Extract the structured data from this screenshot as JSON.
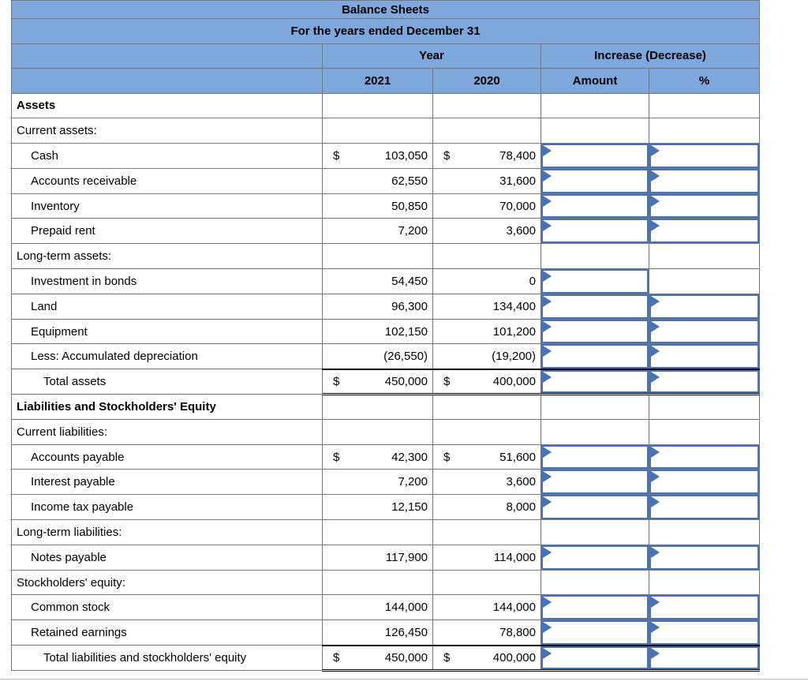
{
  "table": {
    "title": "Balance Sheets",
    "subtitle": "For the years ended December 31",
    "groups": {
      "year": "Year",
      "increase_decrease": "Increase (Decrease)"
    },
    "columns": {
      "y2021": "2021",
      "y2020": "2020",
      "amount": "Amount",
      "percent": "%"
    },
    "rows": [
      {
        "type": "section",
        "label": "Assets"
      },
      {
        "type": "subheader",
        "label": "Current assets:"
      },
      {
        "type": "item",
        "label": "Cash",
        "d2021": "$",
        "v2021": "103,050",
        "d2020": "$",
        "v2020": "78,400",
        "amount_input": true,
        "percent_input": true
      },
      {
        "type": "item",
        "label": "Accounts receivable",
        "v2021": "62,550",
        "v2020": "31,600",
        "amount_input": true,
        "percent_input": true
      },
      {
        "type": "item",
        "label": "Inventory",
        "v2021": "50,850",
        "v2020": "70,000",
        "amount_input": true,
        "percent_input": true
      },
      {
        "type": "item",
        "label": "Prepaid rent",
        "v2021": "7,200",
        "v2020": "3,600",
        "amount_input": true,
        "percent_input": true
      },
      {
        "type": "subheader",
        "label": "Long-term assets:"
      },
      {
        "type": "item",
        "label": "Investment in bonds",
        "v2021": "54,450",
        "v2020": "0",
        "amount_input": true,
        "percent_input": false
      },
      {
        "type": "item",
        "label": "Land",
        "v2021": "96,300",
        "v2020": "134,400",
        "amount_input": true,
        "percent_input": true
      },
      {
        "type": "item",
        "label": "Equipment",
        "v2021": "102,150",
        "v2020": "101,200",
        "amount_input": true,
        "percent_input": true
      },
      {
        "type": "item",
        "label": "Less: Accumulated depreciation",
        "v2021": "(26,550)",
        "v2020": "(19,200)",
        "amount_input": true,
        "percent_input": true
      },
      {
        "type": "total",
        "label": "Total assets",
        "d2021": "$",
        "v2021": "450,000",
        "d2020": "$",
        "v2020": "400,000",
        "amount_input": true,
        "percent_input": true
      },
      {
        "type": "section",
        "label": "Liabilities and Stockholders' Equity"
      },
      {
        "type": "subheader",
        "label": "Current liabilities:"
      },
      {
        "type": "item",
        "label": "Accounts payable",
        "d2021": "$",
        "v2021": "42,300",
        "d2020": "$",
        "v2020": "51,600",
        "amount_input": true,
        "percent_input": true
      },
      {
        "type": "item",
        "label": "Interest payable",
        "v2021": "7,200",
        "v2020": "3,600",
        "amount_input": true,
        "percent_input": true
      },
      {
        "type": "item",
        "label": "Income tax payable",
        "v2021": "12,150",
        "v2020": "8,000",
        "amount_input": true,
        "percent_input": true
      },
      {
        "type": "subheader",
        "label": "Long-term liabilities:"
      },
      {
        "type": "item",
        "label": "Notes payable",
        "v2021": "117,900",
        "v2020": "114,000",
        "amount_input": true,
        "percent_input": true
      },
      {
        "type": "subheader",
        "label": "Stockholders' equity:"
      },
      {
        "type": "item",
        "label": "Common stock",
        "v2021": "144,000",
        "v2020": "144,000",
        "amount_input": true,
        "percent_input": true
      },
      {
        "type": "item",
        "label": "Retained earnings",
        "v2021": "126,450",
        "v2020": "78,800",
        "amount_input": true,
        "percent_input": true
      },
      {
        "type": "total",
        "label": "Total liabilities and stockholders' equity",
        "d2021": "$",
        "v2021": "450,000",
        "d2020": "$",
        "v2020": "400,000",
        "amount_input": true,
        "percent_input": true
      }
    ]
  },
  "colors": {
    "header_blue": "#7EA8DC",
    "input_border_blue": "#4673B8",
    "grid_gray": "#757575",
    "heavy_border": "#000000"
  }
}
